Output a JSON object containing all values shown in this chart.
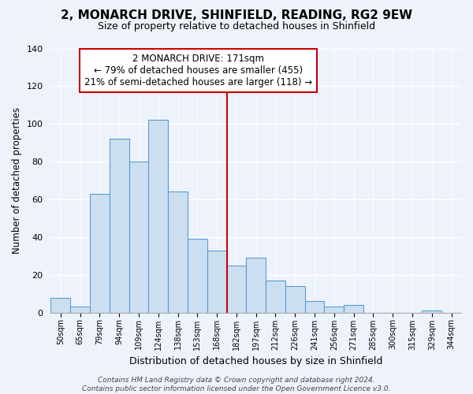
{
  "title": "2, MONARCH DRIVE, SHINFIELD, READING, RG2 9EW",
  "subtitle": "Size of property relative to detached houses in Shinfield",
  "xlabel": "Distribution of detached houses by size in Shinfield",
  "ylabel": "Number of detached properties",
  "bin_labels": [
    "50sqm",
    "65sqm",
    "79sqm",
    "94sqm",
    "109sqm",
    "124sqm",
    "138sqm",
    "153sqm",
    "168sqm",
    "182sqm",
    "197sqm",
    "212sqm",
    "226sqm",
    "241sqm",
    "256sqm",
    "271sqm",
    "285sqm",
    "300sqm",
    "315sqm",
    "329sqm",
    "344sqm"
  ],
  "bar_heights": [
    8,
    3,
    63,
    92,
    80,
    102,
    64,
    39,
    33,
    25,
    29,
    17,
    14,
    6,
    3,
    4,
    0,
    0,
    0,
    1,
    0
  ],
  "bar_color": "#ccdff0",
  "bar_edgecolor": "#5b9bd5",
  "marker_bin_index": 8,
  "annotation_title": "2 MONARCH DRIVE: 171sqm",
  "annotation_line1": "← 79% of detached houses are smaller (455)",
  "annotation_line2": "21% of semi-detached houses are larger (118) →",
  "annotation_box_color": "#ffffff",
  "annotation_box_edgecolor": "#cc0000",
  "vline_color": "#cc0000",
  "ylim": [
    0,
    140
  ],
  "yticks": [
    0,
    20,
    40,
    60,
    80,
    100,
    120,
    140
  ],
  "footer1": "Contains HM Land Registry data © Crown copyright and database right 2024.",
  "footer2": "Contains public sector information licensed under the Open Government Licence v3.0.",
  "bg_color": "#eef3fb",
  "plot_bg_color": "#eef3fb",
  "grid_color": "#ffffff",
  "title_fontsize": 11,
  "subtitle_fontsize": 9
}
